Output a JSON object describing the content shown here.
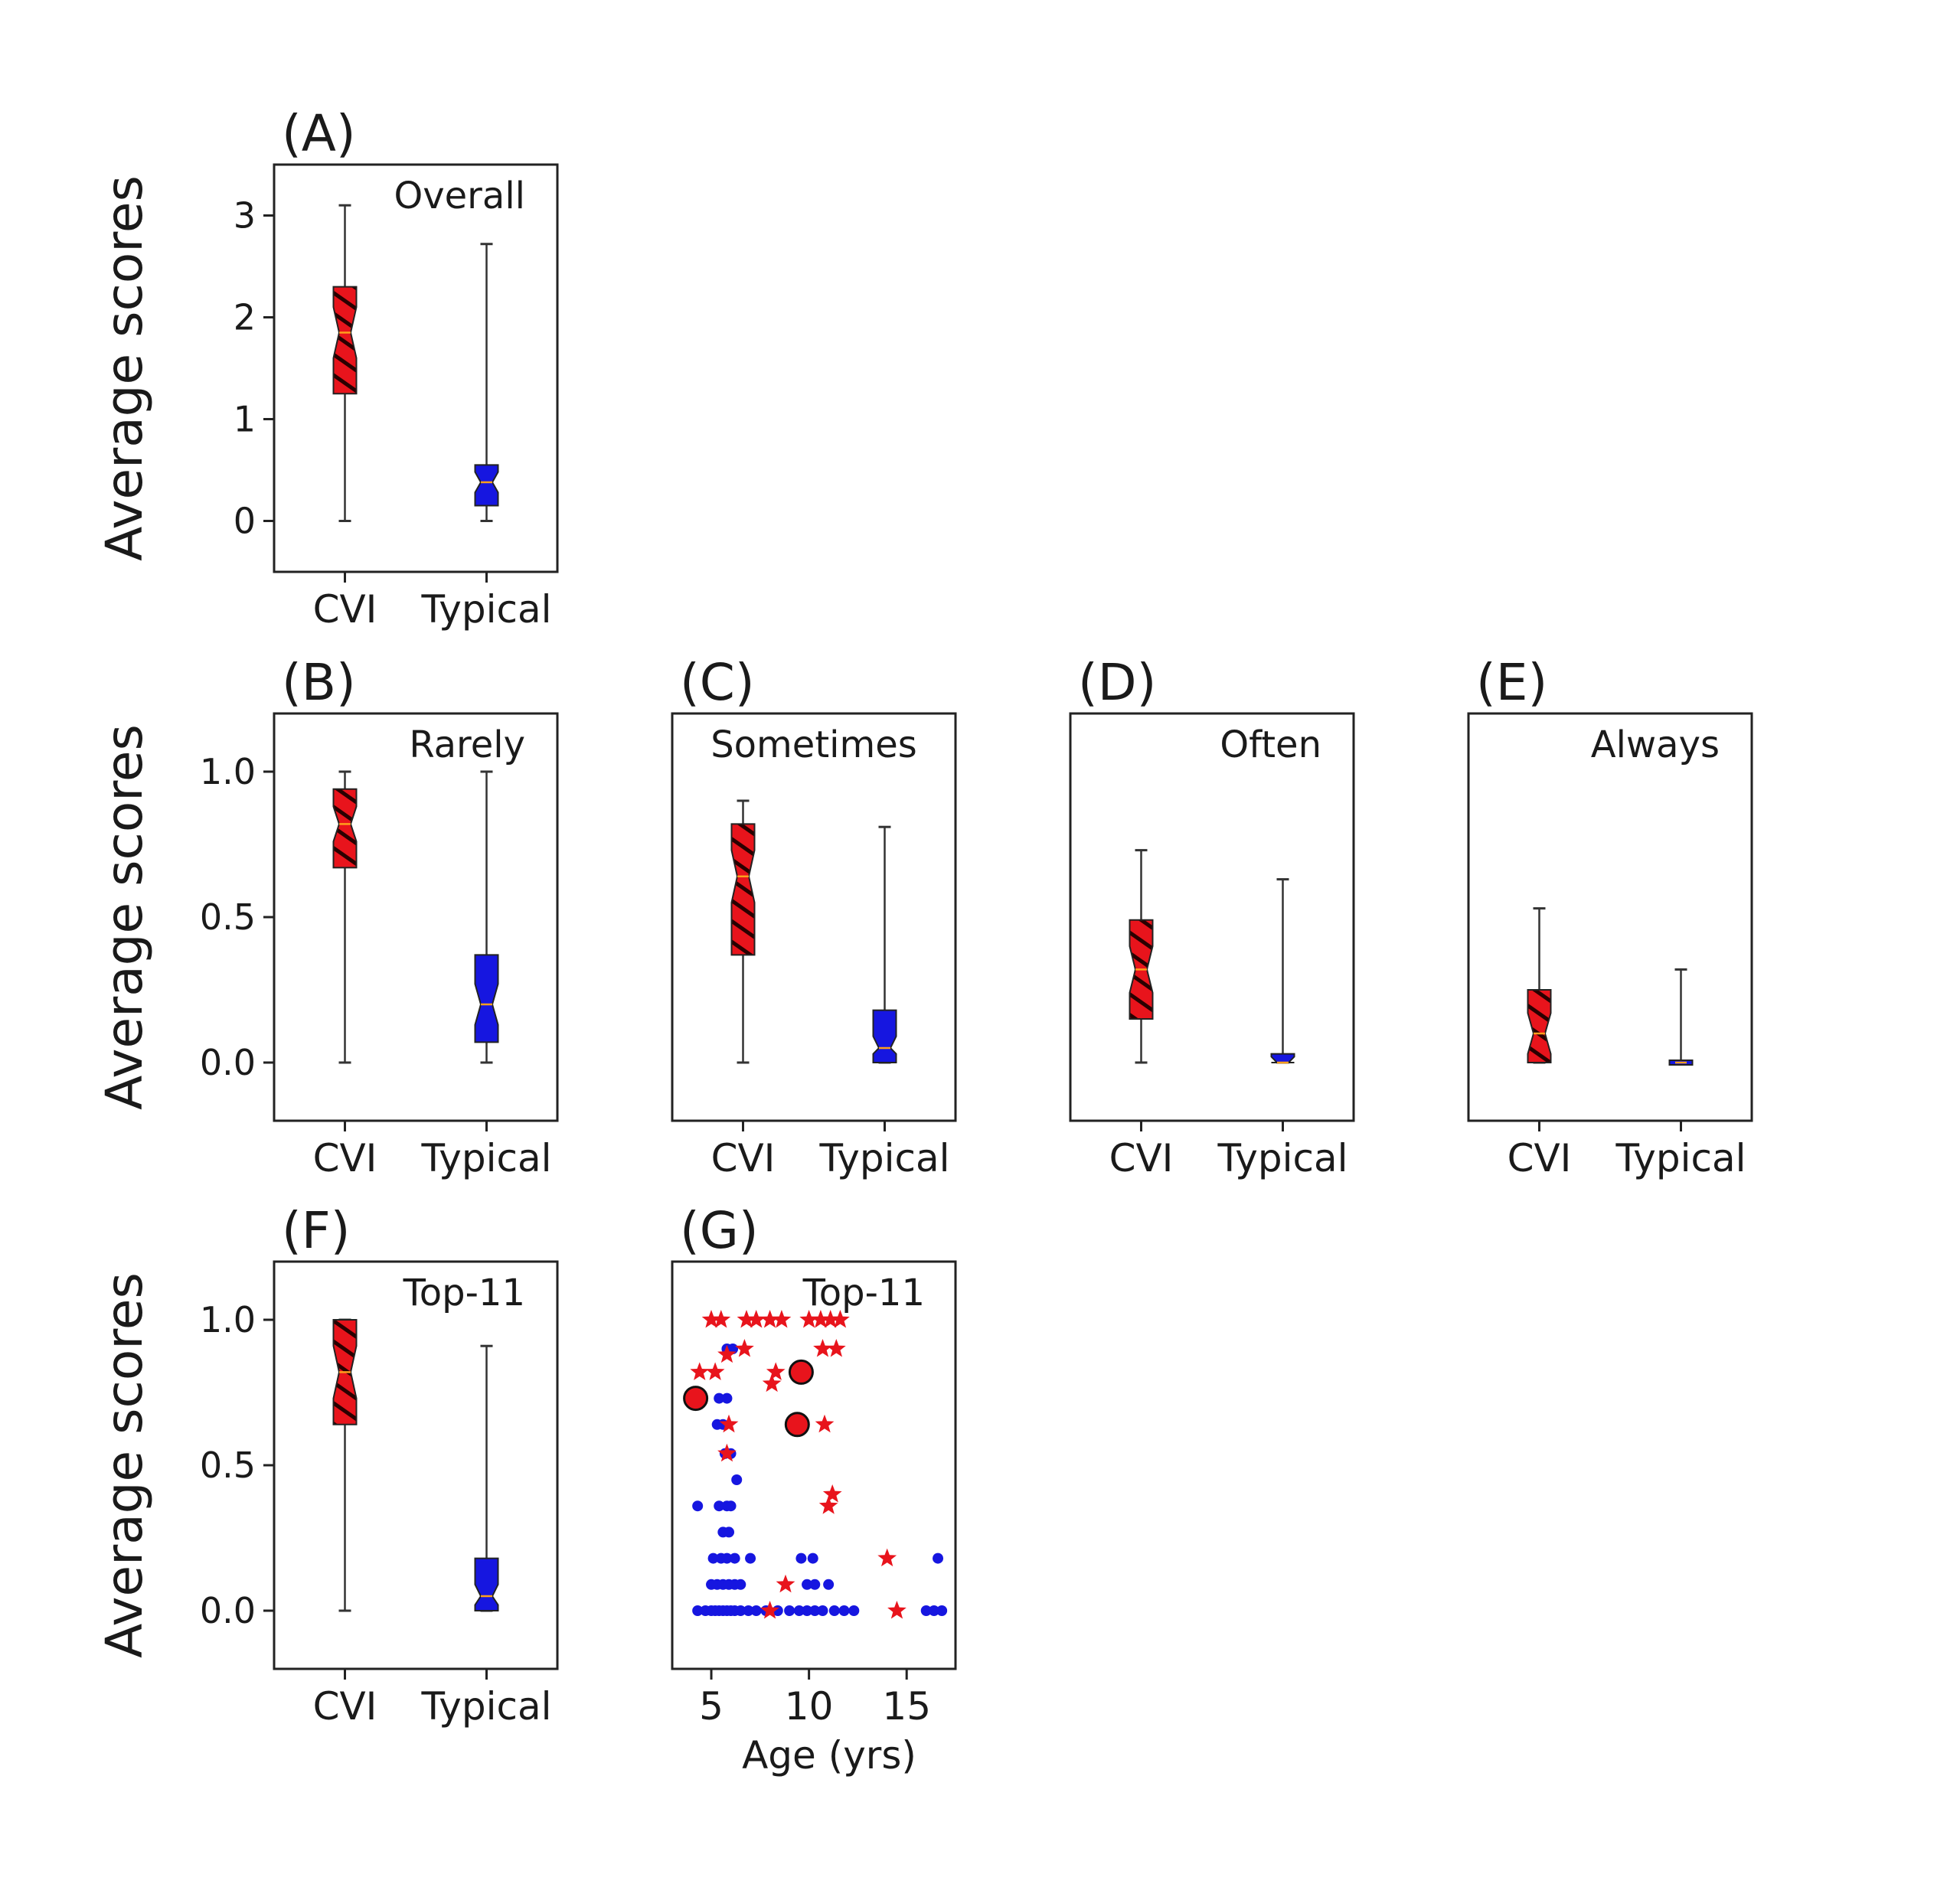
{
  "figure": {
    "ylabel": "Average scores",
    "colors": {
      "cvi": "#e8141c",
      "typical": "#1616e0",
      "hatch": "#2a0000",
      "median": "#ff9f1c",
      "frame": "#222222"
    }
  },
  "chart_data": [
    {
      "panel": "(A)",
      "type": "box",
      "title": "Overall",
      "ylabel": "Average scores",
      "ylim": [
        -0.5,
        3.5
      ],
      "yticks": [
        0,
        1,
        2,
        3
      ],
      "ytick_labels": [
        "0",
        "1",
        "2",
        "3"
      ],
      "categories": [
        "CVI",
        "Typical"
      ],
      "boxes": [
        {
          "name": "CVI",
          "whisker_low": 0.0,
          "q1": 1.25,
          "median": 1.85,
          "q3": 2.3,
          "whisker_high": 3.1,
          "notch_low": 1.6,
          "notch_high": 2.1
        },
        {
          "name": "Typical",
          "whisker_low": 0.0,
          "q1": 0.15,
          "median": 0.38,
          "q3": 0.55,
          "whisker_high": 2.72,
          "notch_low": 0.28,
          "notch_high": 0.48
        }
      ]
    },
    {
      "panel": "(B)",
      "type": "box",
      "title": "Rarely",
      "ylabel": "Average scores",
      "ylim": [
        -0.2,
        1.2
      ],
      "yticks": [
        0,
        0.5,
        1.0
      ],
      "ytick_labels": [
        "0.0",
        "0.5",
        "1.0"
      ],
      "categories": [
        "CVI",
        "Typical"
      ],
      "boxes": [
        {
          "name": "CVI",
          "whisker_low": 0.0,
          "q1": 0.67,
          "median": 0.82,
          "q3": 0.94,
          "whisker_high": 1.0,
          "notch_low": 0.76,
          "notch_high": 0.88
        },
        {
          "name": "Typical",
          "whisker_low": 0.0,
          "q1": 0.07,
          "median": 0.2,
          "q3": 0.37,
          "whisker_high": 1.0,
          "notch_low": 0.13,
          "notch_high": 0.27
        }
      ]
    },
    {
      "panel": "(C)",
      "type": "box",
      "title": "Sometimes",
      "ylabel": "",
      "ylim": [
        -0.2,
        1.2
      ],
      "yticks": [],
      "ytick_labels": [],
      "categories": [
        "CVI",
        "Typical"
      ],
      "boxes": [
        {
          "name": "CVI",
          "whisker_low": 0.0,
          "q1": 0.37,
          "median": 0.64,
          "q3": 0.82,
          "whisker_high": 0.9,
          "notch_low": 0.55,
          "notch_high": 0.73
        },
        {
          "name": "Typical",
          "whisker_low": 0.0,
          "q1": 0.0,
          "median": 0.05,
          "q3": 0.18,
          "whisker_high": 0.81,
          "notch_low": 0.03,
          "notch_high": 0.09
        }
      ]
    },
    {
      "panel": "(D)",
      "type": "box",
      "title": "Often",
      "ylabel": "",
      "ylim": [
        -0.2,
        1.2
      ],
      "yticks": [],
      "ytick_labels": [],
      "categories": [
        "CVI",
        "Typical"
      ],
      "boxes": [
        {
          "name": "CVI",
          "whisker_low": 0.0,
          "q1": 0.15,
          "median": 0.32,
          "q3": 0.49,
          "whisker_high": 0.73,
          "notch_low": 0.24,
          "notch_high": 0.4
        },
        {
          "name": "Typical",
          "whisker_low": 0.0,
          "q1": 0.0,
          "median": 0.0,
          "q3": 0.03,
          "whisker_high": 0.63,
          "notch_low": 0.0,
          "notch_high": 0.02
        }
      ]
    },
    {
      "panel": "(E)",
      "type": "box",
      "title": "Always",
      "ylabel": "",
      "ylim": [
        -0.2,
        1.2
      ],
      "yticks": [],
      "ytick_labels": [],
      "categories": [
        "CVI",
        "Typical"
      ],
      "boxes": [
        {
          "name": "CVI",
          "whisker_low": 0.0,
          "q1": 0.0,
          "median": 0.1,
          "q3": 0.25,
          "whisker_high": 0.53,
          "notch_low": 0.03,
          "notch_high": 0.17
        },
        {
          "name": "Typical",
          "whisker_low": 0.0,
          "q1": 0.0,
          "median": 0.0,
          "q3": 0.0,
          "whisker_high": 0.32,
          "notch_low": 0.0,
          "notch_high": 0.0
        }
      ]
    },
    {
      "panel": "(F)",
      "type": "box",
      "title": "Top-11",
      "ylabel": "Average scores",
      "ylim": [
        -0.2,
        1.2
      ],
      "yticks": [
        0,
        0.5,
        1.0
      ],
      "ytick_labels": [
        "0.0",
        "0.5",
        "1.0"
      ],
      "categories": [
        "CVI",
        "Typical"
      ],
      "boxes": [
        {
          "name": "CVI",
          "whisker_low": 0.0,
          "q1": 0.64,
          "median": 0.82,
          "q3": 1.0,
          "whisker_high": 1.0,
          "notch_low": 0.73,
          "notch_high": 0.91
        },
        {
          "name": "Typical",
          "whisker_low": 0.0,
          "q1": 0.0,
          "median": 0.05,
          "q3": 0.18,
          "whisker_high": 0.91,
          "notch_low": 0.02,
          "notch_high": 0.09
        }
      ]
    },
    {
      "panel": "(G)",
      "type": "scatter",
      "title": "Top-11",
      "xlabel": "Age (yrs)",
      "ylabel": "",
      "xlim": [
        3,
        17.5
      ],
      "ylim": [
        -0.2,
        1.2
      ],
      "xticks": [
        5,
        10,
        15
      ],
      "xtick_labels": [
        "5",
        "10",
        "15"
      ],
      "series": [
        {
          "marker": "circle",
          "color": "typical",
          "points": [
            [
              4.3,
              0.0
            ],
            [
              4.7,
              0.0
            ],
            [
              5.0,
              0.0
            ],
            [
              5.2,
              0.0
            ],
            [
              5.4,
              0.0
            ],
            [
              5.6,
              0.0
            ],
            [
              5.8,
              0.0
            ],
            [
              6.0,
              0.0
            ],
            [
              6.2,
              0.0
            ],
            [
              6.5,
              0.0
            ],
            [
              6.9,
              0.0
            ],
            [
              7.3,
              0.0
            ],
            [
              7.8,
              0.0
            ],
            [
              8.4,
              0.0
            ],
            [
              9.0,
              0.0
            ],
            [
              9.5,
              0.0
            ],
            [
              9.9,
              0.0
            ],
            [
              10.3,
              0.0
            ],
            [
              10.7,
              0.0
            ],
            [
              11.3,
              0.0
            ],
            [
              11.8,
              0.0
            ],
            [
              12.3,
              0.0
            ],
            [
              16.0,
              0.0
            ],
            [
              16.4,
              0.0
            ],
            [
              16.8,
              0.0
            ],
            [
              5.0,
              0.09
            ],
            [
              5.3,
              0.09
            ],
            [
              5.6,
              0.09
            ],
            [
              5.9,
              0.09
            ],
            [
              6.2,
              0.09
            ],
            [
              6.5,
              0.09
            ],
            [
              9.9,
              0.09
            ],
            [
              10.3,
              0.09
            ],
            [
              11.0,
              0.09
            ],
            [
              5.1,
              0.18
            ],
            [
              5.5,
              0.18
            ],
            [
              5.8,
              0.18
            ],
            [
              6.2,
              0.18
            ],
            [
              7.0,
              0.18
            ],
            [
              9.6,
              0.18
            ],
            [
              10.2,
              0.18
            ],
            [
              16.6,
              0.18
            ],
            [
              5.6,
              0.27
            ],
            [
              5.9,
              0.27
            ],
            [
              5.4,
              0.36
            ],
            [
              5.8,
              0.36
            ],
            [
              6.0,
              0.36
            ],
            [
              4.3,
              0.36
            ],
            [
              6.3,
              0.45
            ],
            [
              5.7,
              0.54
            ],
            [
              6.0,
              0.54
            ],
            [
              5.3,
              0.64
            ],
            [
              5.6,
              0.64
            ],
            [
              5.4,
              0.73
            ],
            [
              5.8,
              0.73
            ],
            [
              5.8,
              0.9
            ],
            [
              6.1,
              0.9
            ]
          ]
        },
        {
          "marker": "star",
          "color": "cvi",
          "points": [
            [
              5.0,
              1.0
            ],
            [
              5.5,
              1.0
            ],
            [
              6.8,
              1.0
            ],
            [
              7.3,
              1.0
            ],
            [
              8.0,
              1.0
            ],
            [
              8.6,
              1.0
            ],
            [
              10.0,
              1.0
            ],
            [
              10.6,
              1.0
            ],
            [
              11.1,
              1.0
            ],
            [
              11.6,
              1.0
            ],
            [
              6.7,
              0.9
            ],
            [
              10.7,
              0.9
            ],
            [
              11.4,
              0.9
            ],
            [
              5.8,
              0.88
            ],
            [
              4.4,
              0.82
            ],
            [
              5.2,
              0.82
            ],
            [
              8.3,
              0.82
            ],
            [
              8.1,
              0.78
            ],
            [
              5.9,
              0.64
            ],
            [
              10.8,
              0.64
            ],
            [
              5.8,
              0.54
            ],
            [
              11.2,
              0.4
            ],
            [
              11.0,
              0.36
            ],
            [
              14.0,
              0.18
            ],
            [
              8.8,
              0.09
            ],
            [
              14.5,
              0.0
            ],
            [
              8.0,
              0.0
            ]
          ]
        },
        {
          "marker": "circled",
          "color": "cvi",
          "points": [
            [
              4.2,
              0.73
            ],
            [
              9.6,
              0.82
            ],
            [
              9.4,
              0.64
            ]
          ]
        }
      ]
    }
  ]
}
